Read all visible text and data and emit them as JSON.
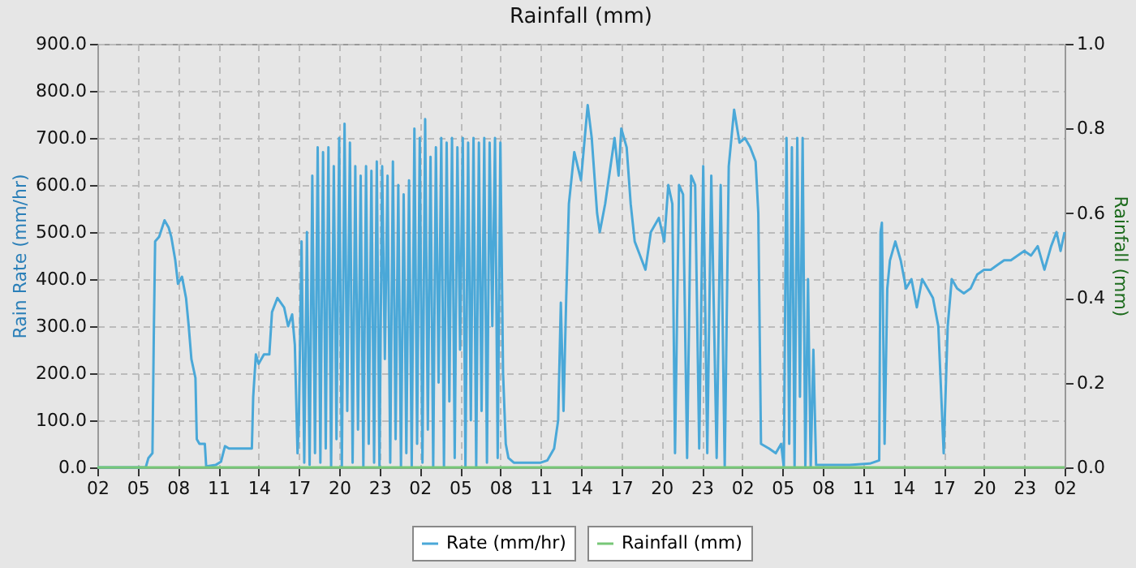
{
  "chart_data": {
    "type": "line",
    "title": "Rainfall (mm)",
    "ylabel": "Rain Rate (mm/hr)",
    "y2label": "Rainfall (mm)",
    "xlim": [
      "--01-01T02:00",
      "--01-04T02:00"
    ],
    "xticks": [
      {
        "value": "--01-01T02:00",
        "label": "02"
      },
      {
        "value": "--01-01T05:00",
        "label": "05"
      },
      {
        "value": "--01-01T08:00",
        "label": "08"
      },
      {
        "value": "--01-01T11:00",
        "label": "11"
      },
      {
        "value": "--01-01T14:00",
        "label": "14"
      },
      {
        "value": "--01-01T17:00",
        "label": "17"
      },
      {
        "value": "--01-01T20:00",
        "label": "20"
      },
      {
        "value": "--01-01T23:00",
        "label": "23"
      },
      {
        "value": "--01-02T02:00",
        "label": "02"
      },
      {
        "value": "--01-02T05:00",
        "label": "05"
      },
      {
        "value": "--01-02T08:00",
        "label": "08"
      },
      {
        "value": "--01-02T11:00",
        "label": "11"
      },
      {
        "value": "--01-02T14:00",
        "label": "14"
      },
      {
        "value": "--01-02T17:00",
        "label": "17"
      },
      {
        "value": "--01-02T20:00",
        "label": "20"
      },
      {
        "value": "--01-02T23:00",
        "label": "23"
      },
      {
        "value": "--01-03T02:00",
        "label": "02"
      },
      {
        "value": "--01-03T05:00",
        "label": "05"
      },
      {
        "value": "--01-03T08:00",
        "label": "08"
      },
      {
        "value": "--01-03T11:00",
        "label": "11"
      },
      {
        "value": "--01-03T14:00",
        "label": "14"
      },
      {
        "value": "--01-03T17:00",
        "label": "17"
      },
      {
        "value": "--01-03T20:00",
        "label": "20"
      },
      {
        "value": "--01-03T23:00",
        "label": "23"
      },
      {
        "value": "--01-04T02:00",
        "label": "02"
      }
    ],
    "ylim": [
      0,
      900
    ],
    "yticks": [
      {
        "value": 0,
        "label": "0.0"
      },
      {
        "value": 100,
        "label": "100.0"
      },
      {
        "value": 200,
        "label": "200.0"
      },
      {
        "value": 300,
        "label": "300.0"
      },
      {
        "value": 400,
        "label": "400.0"
      },
      {
        "value": 500,
        "label": "500.0"
      },
      {
        "value": 600,
        "label": "600.0"
      },
      {
        "value": 700,
        "label": "700.0"
      },
      {
        "value": 800,
        "label": "800.0"
      },
      {
        "value": 900,
        "label": "900.0"
      }
    ],
    "y2lim": [
      0,
      1
    ],
    "y2ticks": [
      {
        "value": 0,
        "label": "0.0"
      },
      {
        "value": 0.2,
        "label": "0.2"
      },
      {
        "value": 0.4,
        "label": "0.4"
      },
      {
        "value": 0.6,
        "label": "0.6"
      },
      {
        "value": 0.8,
        "label": "0.8"
      },
      {
        "value": 1,
        "label": "1.0"
      }
    ],
    "grid": true,
    "legend": "bottom",
    "series": [
      {
        "name": "Rate (mm/hr)",
        "color": "#4aa8d8",
        "x": [
          "--01-01T02:00",
          "--01-01T05:36",
          "--01-01T05:48",
          "--01-01T06:06",
          "--01-01T06:12",
          "--01-01T06:18",
          "--01-01T06:36",
          "--01-01T07:00",
          "--01-01T07:18",
          "--01-01T07:30",
          "--01-01T07:48",
          "--01-01T08:00",
          "--01-01T08:18",
          "--01-01T08:36",
          "--01-01T08:48",
          "--01-01T09:00",
          "--01-01T09:18",
          "--01-01T09:24",
          "--01-01T09:36",
          "--01-01T10:00",
          "--01-01T10:06",
          "--01-01T10:48",
          "--01-01T11:12",
          "--01-01T11:30",
          "--01-01T11:48",
          "--01-01T13:30",
          "--01-01T13:36",
          "--01-01T13:48",
          "--01-01T14:00",
          "--01-01T14:24",
          "--01-01T14:48",
          "--01-01T15:00",
          "--01-01T15:24",
          "--01-01T15:54",
          "--01-01T16:12",
          "--01-01T16:30",
          "--01-01T16:42",
          "--01-01T16:54",
          "--01-01T17:00",
          "--01-01T17:12",
          "--01-01T17:24",
          "--01-01T17:36",
          "--01-01T17:48",
          "--01-01T18:00",
          "--01-01T18:12",
          "--01-01T18:24",
          "--01-01T18:36",
          "--01-01T18:48",
          "--01-01T19:00",
          "--01-01T19:12",
          "--01-01T19:24",
          "--01-01T19:36",
          "--01-01T19:48",
          "--01-01T20:00",
          "--01-01T20:12",
          "--01-01T20:24",
          "--01-01T20:36",
          "--01-01T20:48",
          "--01-01T21:00",
          "--01-01T21:12",
          "--01-01T21:24",
          "--01-01T21:36",
          "--01-01T21:48",
          "--01-01T22:00",
          "--01-01T22:12",
          "--01-01T22:24",
          "--01-01T22:36",
          "--01-01T22:48",
          "--01-01T23:00",
          "--01-01T23:12",
          "--01-01T23:24",
          "--01-01T23:36",
          "--01-01T23:48",
          "--01-02T00:00",
          "--01-02T00:12",
          "--01-02T00:24",
          "--01-02T00:36",
          "--01-02T00:48",
          "--01-02T01:00",
          "--01-02T01:12",
          "--01-02T01:24",
          "--01-02T01:36",
          "--01-02T01:48",
          "--01-02T02:00",
          "--01-02T02:12",
          "--01-02T02:24",
          "--01-02T02:36",
          "--01-02T02:48",
          "--01-02T03:00",
          "--01-02T03:12",
          "--01-02T03:24",
          "--01-02T03:36",
          "--01-02T03:48",
          "--01-02T04:00",
          "--01-02T04:12",
          "--01-02T04:24",
          "--01-02T04:36",
          "--01-02T04:48",
          "--01-02T05:00",
          "--01-02T05:12",
          "--01-02T05:24",
          "--01-02T05:36",
          "--01-02T05:48",
          "--01-02T06:00",
          "--01-02T06:12",
          "--01-02T06:24",
          "--01-02T06:36",
          "--01-02T06:48",
          "--01-02T07:00",
          "--01-02T07:12",
          "--01-02T07:24",
          "--01-02T07:36",
          "--01-02T07:48",
          "--01-02T08:00",
          "--01-02T08:12",
          "--01-02T08:24",
          "--01-02T08:36",
          "--01-02T09:00",
          "--01-02T11:00",
          "--01-02T11:30",
          "--01-02T12:00",
          "--01-02T12:18",
          "--01-02T12:30",
          "--01-02T12:42",
          "--01-02T12:54",
          "--01-02T13:06",
          "--01-02T13:30",
          "--01-02T14:00",
          "--01-02T14:30",
          "--01-02T14:48",
          "--01-02T15:12",
          "--01-02T15:24",
          "--01-02T15:48",
          "--01-02T16:12",
          "--01-02T16:30",
          "--01-02T16:48",
          "--01-02T17:00",
          "--01-02T17:24",
          "--01-02T17:42",
          "--01-02T18:00",
          "--01-02T18:24",
          "--01-02T18:48",
          "--01-02T19:12",
          "--01-02T19:48",
          "--01-02T20:12",
          "--01-02T20:30",
          "--01-02T20:48",
          "--01-02T21:00",
          "--01-02T21:18",
          "--01-02T21:36",
          "--01-02T21:54",
          "--01-02T22:12",
          "--01-02T22:30",
          "--01-02T22:48",
          "--01-02T23:06",
          "--01-02T23:24",
          "--01-02T23:42",
          "--01-03T00:06",
          "--01-03T00:24",
          "--01-03T00:42",
          "--01-03T01:00",
          "--01-03T01:24",
          "--01-03T01:48",
          "--01-03T02:12",
          "--01-03T02:36",
          "--01-03T03:00",
          "--01-03T03:12",
          "--01-03T03:24",
          "--01-03T04:00",
          "--01-03T04:30",
          "--01-03T04:54",
          "--01-03T05:06",
          "--01-03T05:18",
          "--01-03T05:30",
          "--01-03T05:42",
          "--01-03T05:54",
          "--01-03T06:06",
          "--01-03T06:18",
          "--01-03T06:30",
          "--01-03T06:42",
          "--01-03T06:54",
          "--01-03T07:06",
          "--01-03T07:18",
          "--01-03T07:30",
          "--01-03T10:00",
          "--01-03T11:30",
          "--01-03T12:12",
          "--01-03T12:18",
          "--01-03T12:24",
          "--01-03T12:36",
          "--01-03T12:48",
          "--01-03T13:00",
          "--01-03T13:24",
          "--01-03T13:48",
          "--01-03T14:12",
          "--01-03T14:36",
          "--01-03T15:00",
          "--01-03T15:24",
          "--01-03T15:48",
          "--01-03T16:12",
          "--01-03T16:36",
          "--01-03T17:00",
          "--01-03T17:18",
          "--01-03T17:36",
          "--01-03T18:00",
          "--01-03T18:30",
          "--01-03T19:00",
          "--01-03T19:30",
          "--01-03T20:00",
          "--01-03T20:30",
          "--01-03T21:00",
          "--01-03T21:30",
          "--01-03T22:00",
          "--01-03T22:30",
          "--01-03T23:00",
          "--01-03T23:30",
          "--01-04T00:00",
          "--01-04T00:30",
          "--01-04T01:00",
          "--01-04T01:24",
          "--01-04T01:42",
          "--01-04T02:00"
        ],
        "values": [
          0,
          0,
          20,
          30,
          280,
          480,
          490,
          525,
          510,
          490,
          440,
          390,
          405,
          360,
          300,
          230,
          190,
          60,
          50,
          50,
          2,
          5,
          12,
          45,
          40,
          40,
          150,
          240,
          220,
          240,
          240,
          330,
          360,
          340,
          300,
          325,
          260,
          30,
          100,
          480,
          10,
          500,
          5,
          620,
          30,
          680,
          10,
          670,
          40,
          680,
          0,
          640,
          60,
          700,
          0,
          730,
          120,
          690,
          10,
          640,
          80,
          620,
          0,
          640,
          50,
          630,
          10,
          650,
          0,
          640,
          230,
          620,
          10,
          650,
          60,
          600,
          0,
          580,
          30,
          610,
          0,
          720,
          50,
          700,
          10,
          740,
          80,
          660,
          0,
          680,
          180,
          700,
          0,
          690,
          140,
          700,
          20,
          680,
          250,
          700,
          0,
          690,
          100,
          700,
          0,
          690,
          120,
          700,
          10,
          690,
          300,
          700,
          20,
          690,
          200,
          50,
          20,
          10,
          10,
          15,
          40,
          100,
          350,
          120,
          360,
          560,
          670,
          610,
          770,
          700,
          540,
          500,
          560,
          640,
          700,
          620,
          720,
          680,
          560,
          480,
          450,
          420,
          500,
          530,
          480,
          600,
          560,
          30,
          600,
          580,
          20,
          620,
          600,
          40,
          640,
          30,
          620,
          20,
          600,
          0,
          640,
          760,
          690,
          700,
          680,
          650,
          540,
          50,
          40,
          30,
          50,
          0,
          700,
          50,
          680,
          0,
          700,
          150,
          700,
          0,
          400,
          0,
          250,
          5,
          5,
          8,
          15,
          500,
          520,
          50,
          380,
          440,
          480,
          440,
          380,
          400,
          340,
          400,
          380,
          360,
          300,
          30,
          300,
          400,
          380,
          370,
          380,
          410,
          420,
          420,
          430,
          440,
          440,
          450,
          460,
          450,
          470,
          420,
          470,
          500,
          460,
          500
        ]
      },
      {
        "name": "Rainfall (mm)",
        "type": "line",
        "axis": "y2",
        "color": "#77c777",
        "x": [
          "--01-01T02:00",
          "--01-04T02:00"
        ],
        "values": [
          0,
          0
        ]
      }
    ]
  }
}
